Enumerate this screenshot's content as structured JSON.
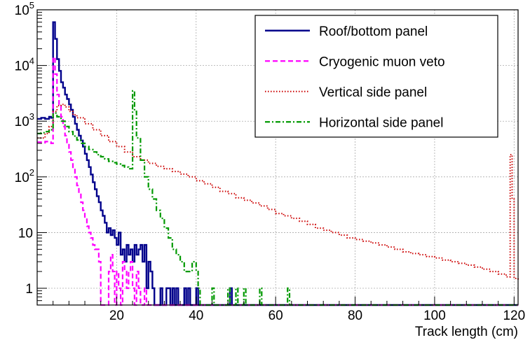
{
  "chart_data": {
    "type": "line",
    "title": "",
    "xlabel": "Track length (cm)",
    "ylabel": "",
    "xlim": [
      0,
      121
    ],
    "ylim": [
      0.5,
      100000
    ],
    "yscale": "log",
    "grid": true,
    "legend_position": "top-right",
    "x_ticks": [
      20,
      40,
      60,
      80,
      100,
      120
    ],
    "y_ticks": [
      {
        "value": 1,
        "label": "1"
      },
      {
        "value": 10,
        "label": "10"
      },
      {
        "value": 100,
        "label": "10",
        "exp": "2"
      },
      {
        "value": 1000,
        "label": "10",
        "exp": "3"
      },
      {
        "value": 10000,
        "label": "10",
        "exp": "4"
      },
      {
        "value": 100000,
        "label": "10",
        "exp": "5"
      }
    ],
    "series": [
      {
        "name": "Roof/bottom panel",
        "color": "#00008b",
        "style": "solid",
        "points": [
          [
            0,
            1100
          ],
          [
            1,
            1150
          ],
          [
            2,
            1100
          ],
          [
            3,
            1200
          ],
          [
            3.5,
            1150
          ],
          [
            4,
            60000
          ],
          [
            4.5,
            30000
          ],
          [
            5,
            13000
          ],
          [
            5.5,
            8000
          ],
          [
            6,
            5000
          ],
          [
            6.5,
            4000
          ],
          [
            7,
            3000
          ],
          [
            7.5,
            2500
          ],
          [
            8,
            2000
          ],
          [
            8.5,
            1600
          ],
          [
            9,
            1200
          ],
          [
            9.5,
            900
          ],
          [
            10,
            700
          ],
          [
            10.5,
            550
          ],
          [
            11,
            450
          ],
          [
            11.5,
            350
          ],
          [
            12,
            260
          ],
          [
            12.5,
            200
          ],
          [
            13,
            150
          ],
          [
            13.5,
            110
          ],
          [
            14,
            80
          ],
          [
            14.5,
            60
          ],
          [
            15,
            45
          ],
          [
            15.5,
            35
          ],
          [
            16,
            25
          ],
          [
            16.5,
            20
          ],
          [
            17,
            15
          ],
          [
            17.5,
            10
          ],
          [
            18,
            12
          ],
          [
            18.5,
            9
          ],
          [
            19,
            11
          ],
          [
            19.5,
            8
          ],
          [
            20,
            6
          ],
          [
            20.5,
            10
          ],
          [
            21,
            4
          ],
          [
            21.5,
            5
          ],
          [
            22,
            3
          ],
          [
            22.5,
            6
          ],
          [
            23,
            4
          ],
          [
            23.5,
            5
          ],
          [
            24,
            3
          ],
          [
            24.5,
            6
          ],
          [
            25,
            4
          ],
          [
            25.5,
            5
          ],
          [
            26,
            6
          ],
          [
            26.5,
            3
          ],
          [
            27,
            6
          ],
          [
            27.5,
            1
          ],
          [
            28,
            3
          ],
          [
            28.5,
            2
          ],
          [
            29,
            1
          ],
          [
            29.5,
            0.5
          ],
          [
            31,
            1
          ],
          [
            31.5,
            0.5
          ],
          [
            32.5,
            1
          ],
          [
            33.5,
            0.5
          ],
          [
            34,
            1
          ],
          [
            34.5,
            0.5
          ],
          [
            35,
            1
          ],
          [
            35.5,
            0.5
          ],
          [
            37,
            1
          ],
          [
            37.5,
            0.5
          ],
          [
            38,
            1
          ],
          [
            38.5,
            0.5
          ],
          [
            40,
            1
          ],
          [
            40.5,
            0.5
          ],
          [
            48.5,
            1
          ],
          [
            49,
            0.5
          ],
          [
            121,
            0.5
          ]
        ]
      },
      {
        "name": "Cryogenic muon veto",
        "color": "#ff00ff",
        "style": "dashed",
        "points": [
          [
            0,
            420
          ],
          [
            1,
            410
          ],
          [
            2,
            430
          ],
          [
            3,
            420
          ],
          [
            3.5,
            400
          ],
          [
            4,
            14000
          ],
          [
            4.5,
            7000
          ],
          [
            5,
            3000
          ],
          [
            5.5,
            2000
          ],
          [
            6,
            1200
          ],
          [
            6.5,
            800
          ],
          [
            7,
            550
          ],
          [
            7.5,
            400
          ],
          [
            8,
            280
          ],
          [
            8.5,
            200
          ],
          [
            9,
            140
          ],
          [
            9.5,
            100
          ],
          [
            10,
            70
          ],
          [
            10.5,
            50
          ],
          [
            11,
            35
          ],
          [
            11.5,
            25
          ],
          [
            12,
            18
          ],
          [
            12.5,
            13
          ],
          [
            13,
            10
          ],
          [
            13.5,
            8
          ],
          [
            14,
            6
          ],
          [
            14.5,
            5
          ],
          [
            15,
            5
          ],
          [
            15.5,
            3
          ],
          [
            16,
            0.5
          ],
          [
            17.5,
            0.5
          ],
          [
            18,
            2
          ],
          [
            18.5,
            4
          ],
          [
            19,
            2
          ],
          [
            19.5,
            0.5
          ],
          [
            20,
            2
          ],
          [
            20.5,
            1
          ],
          [
            21,
            0.5
          ],
          [
            21.5,
            3
          ],
          [
            22,
            2
          ],
          [
            22.5,
            1
          ],
          [
            23,
            2
          ],
          [
            23.5,
            3
          ],
          [
            24,
            1
          ],
          [
            24.5,
            0.5
          ],
          [
            25,
            2
          ],
          [
            25.5,
            1
          ],
          [
            26,
            0.5
          ],
          [
            27,
            1
          ],
          [
            27.5,
            0.5
          ],
          [
            121,
            0.5
          ]
        ]
      },
      {
        "name": "Vertical side panel",
        "color": "#cc0000",
        "style": "dotted",
        "points": [
          [
            0,
            500
          ],
          [
            2,
            600
          ],
          [
            3,
            800
          ],
          [
            4,
            1500
          ],
          [
            5,
            1900
          ],
          [
            6,
            2000
          ],
          [
            7,
            1800
          ],
          [
            8,
            1500
          ],
          [
            9,
            1300
          ],
          [
            10,
            1150
          ],
          [
            12,
            900
          ],
          [
            14,
            700
          ],
          [
            16,
            550
          ],
          [
            18,
            430
          ],
          [
            20,
            350
          ],
          [
            22,
            280
          ],
          [
            24,
            230
          ],
          [
            26,
            200
          ],
          [
            28,
            175
          ],
          [
            30,
            155
          ],
          [
            32,
            140
          ],
          [
            34,
            125
          ],
          [
            36,
            112
          ],
          [
            38,
            100
          ],
          [
            40,
            85
          ],
          [
            42,
            75
          ],
          [
            44,
            65
          ],
          [
            46,
            55
          ],
          [
            48,
            50
          ],
          [
            50,
            42
          ],
          [
            52,
            38
          ],
          [
            54,
            34
          ],
          [
            56,
            30
          ],
          [
            58,
            26
          ],
          [
            60,
            22
          ],
          [
            62,
            20
          ],
          [
            64,
            18
          ],
          [
            66,
            16
          ],
          [
            68,
            14
          ],
          [
            70,
            12
          ],
          [
            72,
            11
          ],
          [
            74,
            10
          ],
          [
            76,
            9
          ],
          [
            78,
            8
          ],
          [
            80,
            7.5
          ],
          [
            82,
            7
          ],
          [
            84,
            6.5
          ],
          [
            86,
            6
          ],
          [
            88,
            5.5
          ],
          [
            90,
            5
          ],
          [
            92,
            4.5
          ],
          [
            94,
            4.2
          ],
          [
            96,
            4
          ],
          [
            98,
            3.7
          ],
          [
            100,
            3.5
          ],
          [
            102,
            3.2
          ],
          [
            104,
            3
          ],
          [
            106,
            2.8
          ],
          [
            108,
            2.6
          ],
          [
            110,
            2.4
          ],
          [
            112,
            2.2
          ],
          [
            114,
            2
          ],
          [
            116,
            1.8
          ],
          [
            118,
            1.6
          ],
          [
            119,
            250
          ],
          [
            119.5,
            40
          ],
          [
            120,
            1.5
          ],
          [
            121,
            1.4
          ]
        ]
      },
      {
        "name": "Horizontal side panel",
        "color": "#009900",
        "style": "dashdot",
        "points": [
          [
            0,
            600
          ],
          [
            1,
            620
          ],
          [
            2,
            650
          ],
          [
            3,
            700
          ],
          [
            4,
            1400
          ],
          [
            5,
            1200
          ],
          [
            6,
            1000
          ],
          [
            7,
            800
          ],
          [
            8,
            650
          ],
          [
            9,
            540
          ],
          [
            10,
            460
          ],
          [
            11,
            400
          ],
          [
            12,
            350
          ],
          [
            13,
            310
          ],
          [
            14,
            280
          ],
          [
            15,
            250
          ],
          [
            16,
            230
          ],
          [
            17,
            210
          ],
          [
            18,
            190
          ],
          [
            19,
            180
          ],
          [
            20,
            170
          ],
          [
            21,
            160
          ],
          [
            22,
            150
          ],
          [
            23,
            140
          ],
          [
            24,
            3500
          ],
          [
            24.5,
            1500
          ],
          [
            25,
            500
          ],
          [
            26,
            200
          ],
          [
            27,
            100
          ],
          [
            28,
            60
          ],
          [
            29,
            40
          ],
          [
            30,
            25
          ],
          [
            31,
            18
          ],
          [
            32,
            12
          ],
          [
            33,
            8
          ],
          [
            34,
            5
          ],
          [
            35,
            4
          ],
          [
            36,
            3
          ],
          [
            37,
            2
          ],
          [
            38,
            2
          ],
          [
            39,
            3
          ],
          [
            40,
            2
          ],
          [
            40.5,
            1
          ],
          [
            41,
            0.5
          ],
          [
            42,
            0.5
          ],
          [
            44,
            1
          ],
          [
            44.5,
            0.5
          ],
          [
            48,
            1
          ],
          [
            48.5,
            0.5
          ],
          [
            50,
            1
          ],
          [
            50.5,
            0.5
          ],
          [
            52,
            1
          ],
          [
            52.5,
            0.5
          ],
          [
            56,
            1
          ],
          [
            56.5,
            0.5
          ],
          [
            63,
            1
          ],
          [
            63.5,
            0.5
          ],
          [
            121,
            0.5
          ]
        ]
      }
    ]
  }
}
